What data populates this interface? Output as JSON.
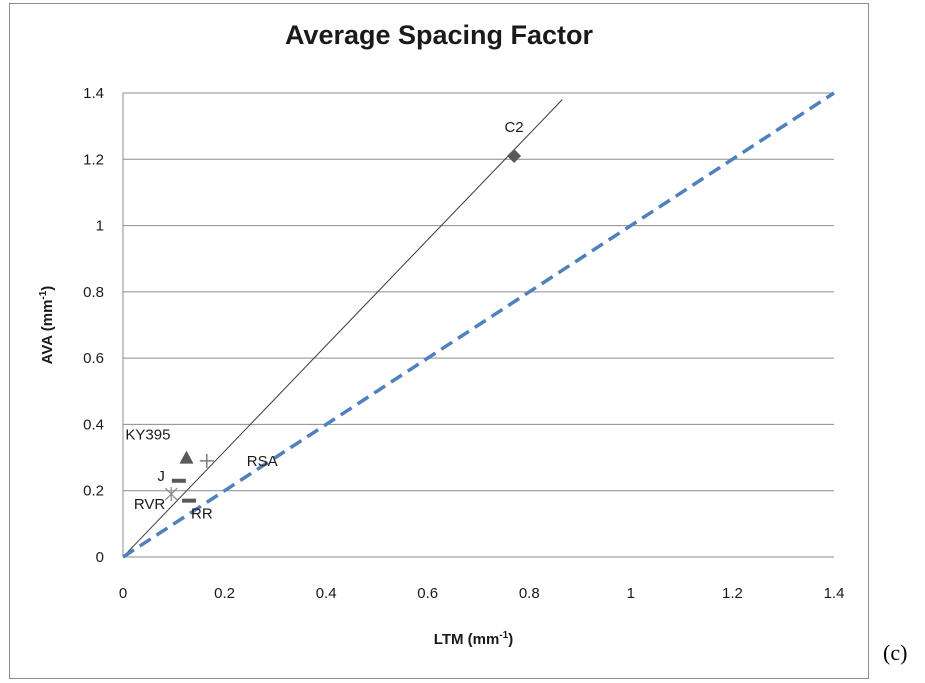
{
  "caption": "(c)",
  "chart_data": {
    "type": "scatter",
    "title": "Average Spacing Factor",
    "xlabel": "LTM (mm",
    "xlabel_sup": "-1",
    "xlabel_tail": ")",
    "ylabel": "AVA (mm",
    "ylabel_sup": "-1",
    "ylabel_tail": ")",
    "xlim": [
      0,
      1.4
    ],
    "ylim": [
      0,
      1.4
    ],
    "x_ticks": [
      "0",
      "0.2",
      "0.4",
      "0.6",
      "0.8",
      "1",
      "1.2",
      "1.4"
    ],
    "y_ticks": [
      "0",
      "0.2",
      "0.4",
      "0.6",
      "0.8",
      "1",
      "1.2",
      "1.4"
    ],
    "grid": "horizontal",
    "series": [
      {
        "name": "C2",
        "x": 0.77,
        "y": 1.21,
        "marker": "diamond",
        "color": "#595959"
      },
      {
        "name": "KY395",
        "x": 0.125,
        "y": 0.3,
        "marker": "triangle",
        "color": "#595959"
      },
      {
        "name": "RSA",
        "x": 0.165,
        "y": 0.29,
        "marker": "plus",
        "color": "#7f7f7f"
      },
      {
        "name": "J",
        "x": 0.11,
        "y": 0.23,
        "marker": "dash",
        "color": "#595959"
      },
      {
        "name": "RVR",
        "x": 0.095,
        "y": 0.19,
        "marker": "star",
        "color": "#8c8c8c"
      },
      {
        "name": "RR",
        "x": 0.13,
        "y": 0.17,
        "marker": "dash",
        "color": "#595959"
      }
    ],
    "lines": [
      {
        "from": [
          0,
          0
        ],
        "to": [
          0.865,
          1.38
        ],
        "style": "solid",
        "color": "#3b3b3b"
      },
      {
        "from": [
          0,
          0
        ],
        "to": [
          1.4,
          1.4
        ],
        "style": "dashed",
        "color": "#4f81bd"
      }
    ]
  }
}
